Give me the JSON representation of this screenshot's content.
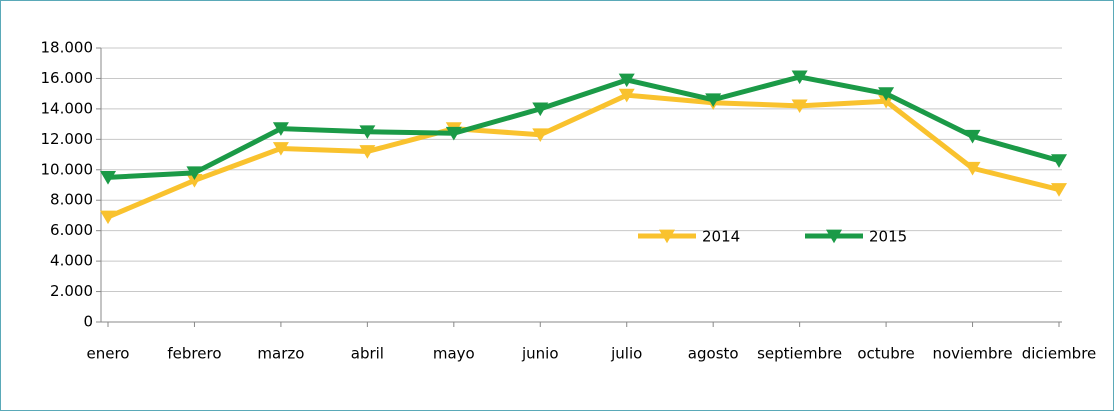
{
  "chart_data": {
    "type": "line",
    "categories": [
      "enero",
      "febrero",
      "marzo",
      "abril",
      "mayo",
      "junio",
      "julio",
      "agosto",
      "septiembre",
      "octubre",
      "noviembre",
      "diciembre"
    ],
    "series": [
      {
        "name": "2014",
        "color": "#f9c22e",
        "values": [
          6900,
          9300,
          11400,
          11200,
          12700,
          12300,
          14900,
          14400,
          14200,
          14500,
          10100,
          8700
        ]
      },
      {
        "name": "2015",
        "color": "#1b9a47",
        "values": [
          9500,
          9800,
          12700,
          12500,
          12400,
          14000,
          15900,
          14600,
          16100,
          15000,
          12200,
          10600
        ]
      }
    ],
    "ylim": [
      0,
      18000
    ],
    "yticks": [
      0,
      {
        "value": 2000,
        "label": "2.000"
      },
      {
        "value": 4000,
        "label": "4.000"
      },
      {
        "value": 6000,
        "label": "6.000"
      },
      {
        "value": 8000,
        "label": "8.000"
      },
      {
        "value": 10000,
        "label": "10.000"
      },
      {
        "value": 12000,
        "label": "12.000"
      },
      {
        "value": 14000,
        "label": "14.000"
      },
      {
        "value": 16000,
        "label": "16.000"
      },
      {
        "value": 18000,
        "label": "18.000"
      }
    ],
    "grid": true
  }
}
